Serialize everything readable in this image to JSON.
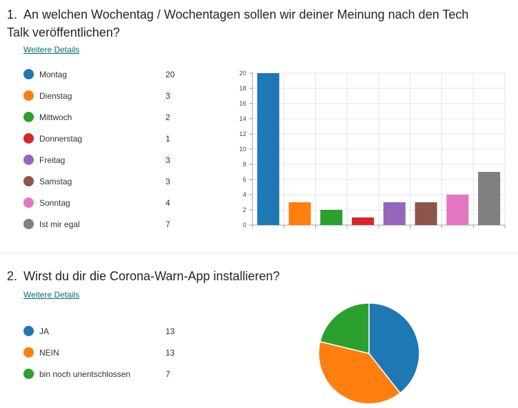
{
  "questions": [
    {
      "number": "1.",
      "title": "An welchen Wochentag / Wochentagen sollen wir deiner Meinung nach den Tech Talk veröffentlichen?",
      "details_link": "Weitere Details",
      "options": [
        {
          "label": "Montag",
          "count": "20",
          "color": "#1f77b4"
        },
        {
          "label": "Dienstag",
          "count": "3",
          "color": "#ff7f0e"
        },
        {
          "label": "Mittwoch",
          "count": "2",
          "color": "#2ca02c"
        },
        {
          "label": "Donnerstag",
          "count": "1",
          "color": "#d62728"
        },
        {
          "label": "Freitag",
          "count": "3",
          "color": "#9467bd"
        },
        {
          "label": "Samstag",
          "count": "3",
          "color": "#8c564b"
        },
        {
          "label": "Sonntag",
          "count": "4",
          "color": "#e377c2"
        },
        {
          "label": "Ist mir egal",
          "count": "7",
          "color": "#7f7f7f"
        }
      ]
    },
    {
      "number": "2.",
      "title": "Wirst du dir die Corona-Warn-App installieren?",
      "details_link": "Weitere Details",
      "options": [
        {
          "label": "JA",
          "count": "13",
          "color": "#1f77b4"
        },
        {
          "label": "NEIN",
          "count": "13",
          "color": "#ff7f0e"
        },
        {
          "label": "bin noch unentschlossen",
          "count": "7",
          "color": "#2ca02c"
        }
      ]
    }
  ],
  "chart_data": [
    {
      "type": "bar",
      "categories": [
        "Montag",
        "Dienstag",
        "Mittwoch",
        "Donnerstag",
        "Freitag",
        "Samstag",
        "Sonntag",
        "Ist mir egal"
      ],
      "values": [
        20,
        3,
        2,
        1,
        3,
        3,
        4,
        7
      ],
      "colors": [
        "#1f77b4",
        "#ff7f0e",
        "#2ca02c",
        "#d62728",
        "#9467bd",
        "#8c564b",
        "#e377c2",
        "#7f7f7f"
      ],
      "ylim": [
        0,
        20
      ],
      "yticks": [
        "0",
        "2",
        "4",
        "6",
        "8",
        "10",
        "12",
        "14",
        "16",
        "18",
        "20"
      ],
      "grid": true,
      "title": "",
      "xlabel": "",
      "ylabel": ""
    },
    {
      "type": "pie",
      "categories": [
        "JA",
        "NEIN",
        "bin noch unentschlossen"
      ],
      "values": [
        13,
        13,
        7
      ],
      "colors": [
        "#1f77b4",
        "#ff7f0e",
        "#2ca02c"
      ],
      "title": ""
    }
  ]
}
